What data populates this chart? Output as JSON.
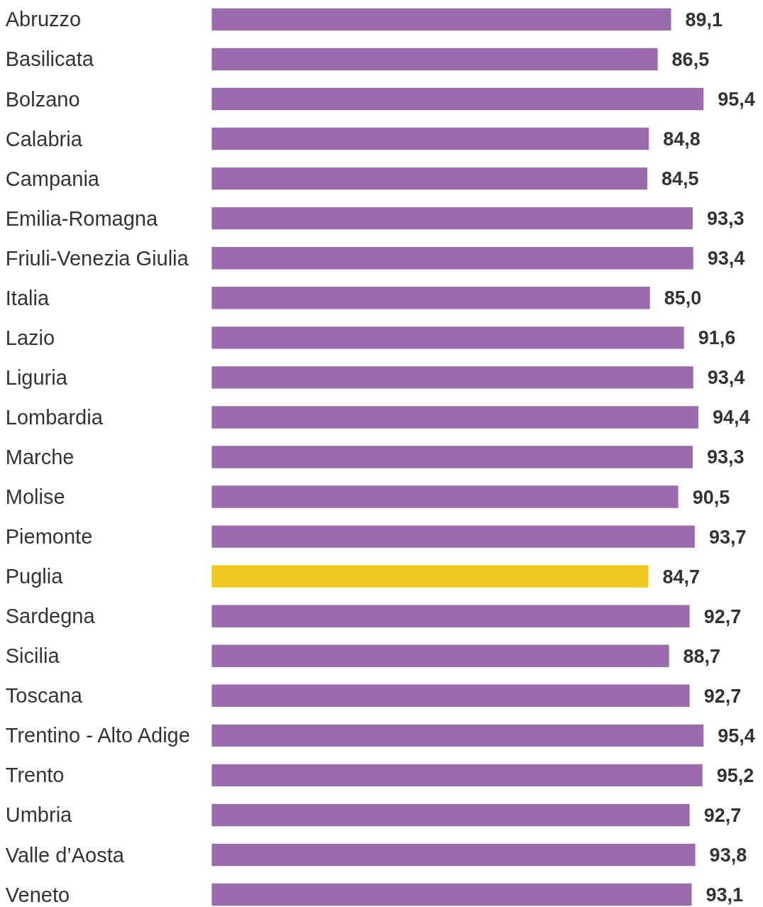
{
  "chart_data": {
    "type": "bar",
    "orientation": "horizontal",
    "categories": [
      "Abruzzo",
      "Basilicata",
      "Bolzano",
      "Calabria",
      "Campania",
      "Emilia-Romagna",
      "Friuli-Venezia Giulia",
      "Italia",
      "Lazio",
      "Liguria",
      "Lombardia",
      "Marche",
      "Molise",
      "Piemonte",
      "Puglia",
      "Sardegna",
      "Sicilia",
      "Toscana",
      "Trentino - Alto Adige",
      "Trento",
      "Umbria",
      "Valle d’Aosta",
      "Veneto"
    ],
    "values": [
      89.1,
      86.5,
      95.4,
      84.8,
      84.5,
      93.3,
      93.4,
      85.0,
      91.6,
      93.4,
      94.4,
      93.3,
      90.5,
      93.7,
      84.7,
      92.7,
      88.7,
      92.7,
      95.4,
      95.2,
      92.7,
      93.8,
      93.1
    ],
    "value_labels": [
      "89,1",
      "86,5",
      "95,4",
      "84,8",
      "84,5",
      "93,3",
      "93,4",
      "85,0",
      "91,6",
      "93,4",
      "94,4",
      "93,3",
      "90,5",
      "93,7",
      "84,7",
      "92,7",
      "88,7",
      "92,7",
      "95,4",
      "95,2",
      "92,7",
      "93,8",
      "93,1"
    ],
    "colors": [
      "#9b6bae",
      "#9b6bae",
      "#9b6bae",
      "#9b6bae",
      "#9b6bae",
      "#9b6bae",
      "#9b6bae",
      "#9b6bae",
      "#9b6bae",
      "#9b6bae",
      "#9b6bae",
      "#9b6bae",
      "#9b6bae",
      "#9b6bae",
      "#eec921",
      "#9b6bae",
      "#9b6bae",
      "#9b6bae",
      "#9b6bae",
      "#9b6bae",
      "#9b6bae",
      "#9b6bae",
      "#9b6bae"
    ]
  }
}
